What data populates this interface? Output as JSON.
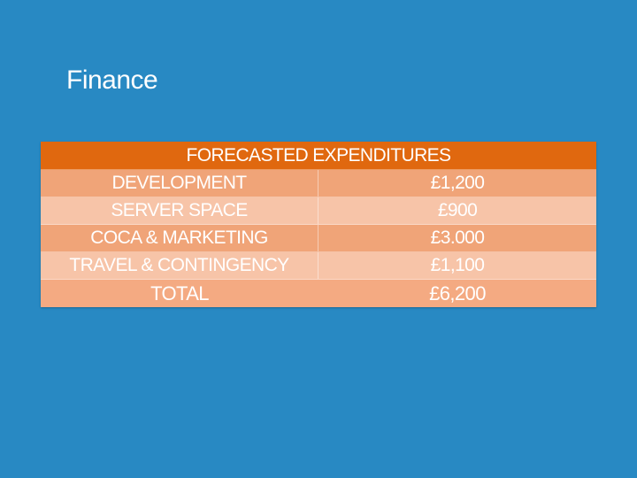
{
  "slide": {
    "title": "Finance"
  },
  "table": {
    "header": "FORECASTED EXPENDITURES",
    "rows": [
      {
        "label": "DEVELOPMENT",
        "value": "£1,200"
      },
      {
        "label": "SERVER SPACE",
        "value": "£900"
      },
      {
        "label": "COCA & MARKETING",
        "value": "£3.000"
      },
      {
        "label": "TRAVEL & CONTINGENCY",
        "value": "£1,100"
      }
    ],
    "total": {
      "label": "TOTAL",
      "value": "£6,200"
    }
  },
  "colors": {
    "background": "#2889c3",
    "header": "#e0680f",
    "row_dark": "#f0a478",
    "row_light": "#f7c4a8"
  }
}
